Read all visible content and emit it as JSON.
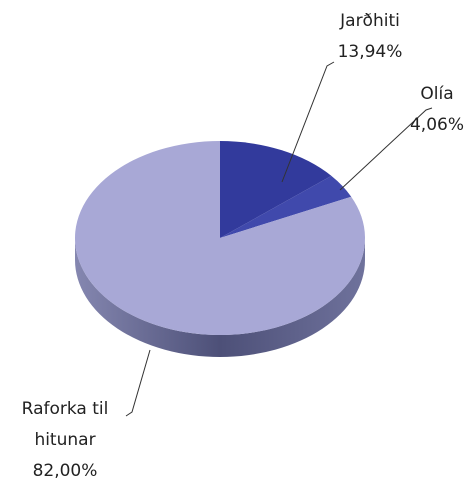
{
  "chart_data": {
    "type": "pie",
    "categories": [
      "Jarðhiti",
      "Olía",
      "Raforka til hitunar"
    ],
    "values": [
      13.94,
      4.06,
      82.0
    ],
    "value_labels": [
      "13,94%",
      "4,06%",
      "82,00%"
    ],
    "colors": [
      "#323a9c",
      "#4049ac",
      "#a8a8d6"
    ],
    "three_d": true
  }
}
